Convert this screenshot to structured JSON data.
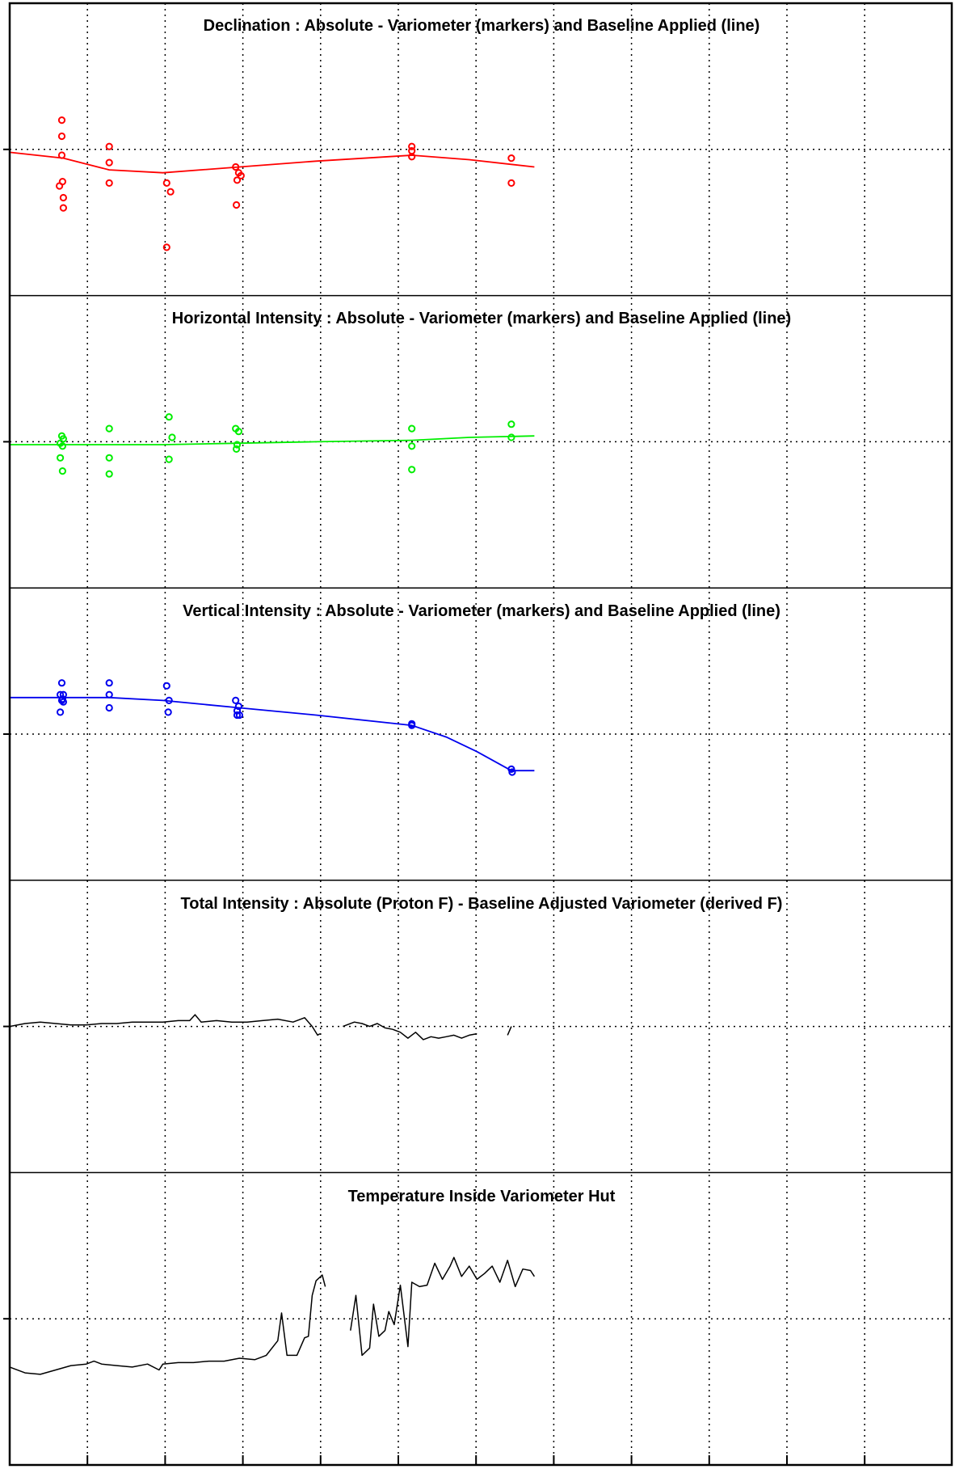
{
  "figure": {
    "x_grid_count": 11,
    "colors": {
      "frame": "#000000",
      "grid": "#000000",
      "red": "#ff0000",
      "green": "#00ee00",
      "blue": "#0000ee",
      "black": "#000000"
    }
  },
  "chart_data": [
    {
      "type": "scatter",
      "title": "Declination : Absolute - Variometer (markers) and Baseline Applied (line)",
      "xlim": [
        0,
        12.3
      ],
      "ylim": [
        -1,
        1
      ],
      "grid": true,
      "color": "#ff0000",
      "markers": [
        [
          0.68,
          0.2
        ],
        [
          0.68,
          0.09
        ],
        [
          0.68,
          -0.04
        ],
        [
          0.69,
          -0.22
        ],
        [
          0.65,
          -0.25
        ],
        [
          0.7,
          -0.33
        ],
        [
          0.7,
          -0.4
        ],
        [
          1.3,
          0.02
        ],
        [
          1.3,
          -0.09
        ],
        [
          1.3,
          -0.23
        ],
        [
          2.05,
          -0.23
        ],
        [
          2.1,
          -0.29
        ],
        [
          2.05,
          -0.67
        ],
        [
          2.95,
          -0.12
        ],
        [
          2.99,
          -0.16
        ],
        [
          3.02,
          -0.18
        ],
        [
          2.97,
          -0.21
        ],
        [
          2.96,
          -0.38
        ],
        [
          5.25,
          0.02
        ],
        [
          5.25,
          -0.01
        ],
        [
          5.25,
          -0.05
        ],
        [
          6.55,
          -0.06
        ],
        [
          6.55,
          -0.23
        ]
      ],
      "line": [
        [
          0,
          -0.02
        ],
        [
          0.7,
          -0.06
        ],
        [
          1.3,
          -0.14
        ],
        [
          2.0,
          -0.16
        ],
        [
          3.0,
          -0.12
        ],
        [
          4.0,
          -0.08
        ],
        [
          5.25,
          -0.04
        ],
        [
          6.0,
          -0.07
        ],
        [
          6.85,
          -0.12
        ]
      ]
    },
    {
      "type": "scatter",
      "title": "Horizontal Intensity : Absolute - Variometer (markers) and Baseline Applied (line)",
      "xlim": [
        0,
        12.3
      ],
      "ylim": [
        -1,
        1
      ],
      "grid": true,
      "color": "#00ee00",
      "markers": [
        [
          0.68,
          0.04
        ],
        [
          0.7,
          0.02
        ],
        [
          0.66,
          -0.01
        ],
        [
          0.69,
          -0.03
        ],
        [
          0.66,
          -0.11
        ],
        [
          0.69,
          -0.2
        ],
        [
          1.3,
          0.09
        ],
        [
          1.3,
          -0.11
        ],
        [
          1.3,
          -0.22
        ],
        [
          2.08,
          0.17
        ],
        [
          2.12,
          0.03
        ],
        [
          2.08,
          -0.12
        ],
        [
          2.95,
          0.09
        ],
        [
          2.99,
          0.07
        ],
        [
          2.97,
          -0.02
        ],
        [
          2.96,
          -0.05
        ],
        [
          5.25,
          0.09
        ],
        [
          5.25,
          -0.03
        ],
        [
          5.25,
          -0.19
        ],
        [
          6.55,
          0.12
        ],
        [
          6.55,
          0.03
        ]
      ],
      "line": [
        [
          0,
          -0.02
        ],
        [
          1.0,
          -0.02
        ],
        [
          2.0,
          -0.02
        ],
        [
          3.0,
          -0.01
        ],
        [
          4.0,
          0.0
        ],
        [
          5.25,
          0.01
        ],
        [
          6.0,
          0.03
        ],
        [
          6.85,
          0.04
        ]
      ]
    },
    {
      "type": "scatter",
      "title": "Vertical Intensity : Absolute - Variometer (markers) and Baseline Applied (line)",
      "xlim": [
        0,
        12.3
      ],
      "ylim": [
        -1,
        1
      ],
      "grid": true,
      "color": "#0000ee",
      "markers": [
        [
          0.68,
          0.35
        ],
        [
          0.7,
          0.27
        ],
        [
          0.66,
          0.27
        ],
        [
          0.69,
          0.24
        ],
        [
          0.68,
          0.23
        ],
        [
          0.7,
          0.22
        ],
        [
          0.66,
          0.15
        ],
        [
          1.3,
          0.35
        ],
        [
          1.3,
          0.27
        ],
        [
          1.3,
          0.18
        ],
        [
          2.05,
          0.33
        ],
        [
          2.08,
          0.23
        ],
        [
          2.07,
          0.15
        ],
        [
          2.95,
          0.23
        ],
        [
          2.99,
          0.19
        ],
        [
          2.97,
          0.16
        ],
        [
          2.97,
          0.13
        ],
        [
          3.0,
          0.13
        ],
        [
          5.25,
          0.07
        ],
        [
          5.25,
          0.06
        ],
        [
          6.55,
          -0.24
        ],
        [
          6.56,
          -0.26
        ]
      ],
      "line": [
        [
          0,
          0.25
        ],
        [
          1.3,
          0.25
        ],
        [
          2.0,
          0.23
        ],
        [
          3.0,
          0.18
        ],
        [
          4.0,
          0.13
        ],
        [
          5.25,
          0.06
        ],
        [
          5.7,
          -0.02
        ],
        [
          6.1,
          -0.12
        ],
        [
          6.55,
          -0.25
        ],
        [
          6.85,
          -0.25
        ]
      ]
    },
    {
      "type": "line",
      "title": "Total Intensity : Absolute (Proton F) - Baseline Adjusted Variometer (derived F)",
      "xlim": [
        0,
        12.3
      ],
      "ylim": [
        -1,
        1
      ],
      "grid": true,
      "color": "#000000",
      "segments": [
        [
          [
            0,
            0.0
          ],
          [
            0.2,
            0.02
          ],
          [
            0.4,
            0.03
          ],
          [
            0.6,
            0.02
          ],
          [
            0.8,
            0.01
          ],
          [
            1.0,
            0.01
          ],
          [
            1.2,
            0.02
          ],
          [
            1.4,
            0.02
          ],
          [
            1.6,
            0.03
          ],
          [
            1.8,
            0.03
          ],
          [
            2.0,
            0.03
          ],
          [
            2.2,
            0.04
          ],
          [
            2.35,
            0.04
          ],
          [
            2.42,
            0.08
          ],
          [
            2.5,
            0.03
          ],
          [
            2.7,
            0.04
          ],
          [
            2.9,
            0.03
          ],
          [
            3.1,
            0.03
          ],
          [
            3.3,
            0.04
          ],
          [
            3.5,
            0.05
          ],
          [
            3.7,
            0.03
          ],
          [
            3.85,
            0.06
          ],
          [
            3.95,
            0.0
          ],
          [
            4.02,
            -0.06
          ],
          [
            4.05,
            -0.05
          ]
        ],
        [
          [
            4.35,
            0.0
          ],
          [
            4.5,
            0.03
          ],
          [
            4.6,
            0.02
          ],
          [
            4.7,
            0.0
          ],
          [
            4.8,
            0.02
          ],
          [
            4.9,
            -0.01
          ],
          [
            5.0,
            -0.02
          ],
          [
            5.1,
            -0.04
          ],
          [
            5.2,
            -0.08
          ],
          [
            5.3,
            -0.04
          ],
          [
            5.4,
            -0.09
          ],
          [
            5.5,
            -0.07
          ],
          [
            5.6,
            -0.08
          ],
          [
            5.7,
            -0.07
          ],
          [
            5.8,
            -0.06
          ],
          [
            5.9,
            -0.08
          ],
          [
            6.0,
            -0.06
          ],
          [
            6.1,
            -0.05
          ]
        ],
        [
          [
            6.5,
            -0.06
          ],
          [
            6.55,
            0.0
          ]
        ]
      ]
    },
    {
      "type": "line",
      "title": "Temperature Inside Variometer Hut",
      "xlim": [
        0,
        12.3
      ],
      "ylim": [
        -1,
        1
      ],
      "grid": true,
      "color": "#000000",
      "segments": [
        [
          [
            0,
            -0.33
          ],
          [
            0.2,
            -0.37
          ],
          [
            0.4,
            -0.38
          ],
          [
            0.6,
            -0.35
          ],
          [
            0.8,
            -0.32
          ],
          [
            1.0,
            -0.31
          ],
          [
            1.1,
            -0.29
          ],
          [
            1.2,
            -0.31
          ],
          [
            1.4,
            -0.32
          ],
          [
            1.6,
            -0.33
          ],
          [
            1.8,
            -0.31
          ],
          [
            1.95,
            -0.35
          ],
          [
            2.0,
            -0.31
          ],
          [
            2.2,
            -0.3
          ],
          [
            2.4,
            -0.3
          ],
          [
            2.6,
            -0.29
          ],
          [
            2.8,
            -0.29
          ],
          [
            3.0,
            -0.27
          ],
          [
            3.2,
            -0.28
          ],
          [
            3.35,
            -0.25
          ],
          [
            3.5,
            -0.15
          ],
          [
            3.55,
            0.04
          ],
          [
            3.62,
            -0.25
          ],
          [
            3.75,
            -0.25
          ],
          [
            3.85,
            -0.13
          ],
          [
            3.9,
            -0.12
          ],
          [
            3.95,
            0.16
          ],
          [
            4.0,
            0.26
          ],
          [
            4.08,
            0.3
          ],
          [
            4.12,
            0.22
          ]
        ],
        [
          [
            4.45,
            -0.08
          ],
          [
            4.52,
            0.16
          ],
          [
            4.6,
            -0.25
          ],
          [
            4.7,
            -0.2
          ],
          [
            4.75,
            0.1
          ],
          [
            4.82,
            -0.12
          ],
          [
            4.9,
            -0.08
          ],
          [
            4.95,
            0.05
          ],
          [
            5.02,
            -0.04
          ],
          [
            5.1,
            0.23
          ],
          [
            5.2,
            -0.19
          ],
          [
            5.25,
            0.25
          ],
          [
            5.35,
            0.22
          ],
          [
            5.45,
            0.23
          ],
          [
            5.55,
            0.38
          ],
          [
            5.65,
            0.27
          ],
          [
            5.75,
            0.36
          ],
          [
            5.8,
            0.42
          ],
          [
            5.9,
            0.29
          ],
          [
            6.0,
            0.36
          ],
          [
            6.1,
            0.27
          ],
          [
            6.2,
            0.31
          ],
          [
            6.3,
            0.36
          ],
          [
            6.4,
            0.25
          ],
          [
            6.5,
            0.4
          ],
          [
            6.6,
            0.22
          ],
          [
            6.7,
            0.34
          ],
          [
            6.8,
            0.33
          ],
          [
            6.85,
            0.29
          ]
        ]
      ]
    }
  ]
}
